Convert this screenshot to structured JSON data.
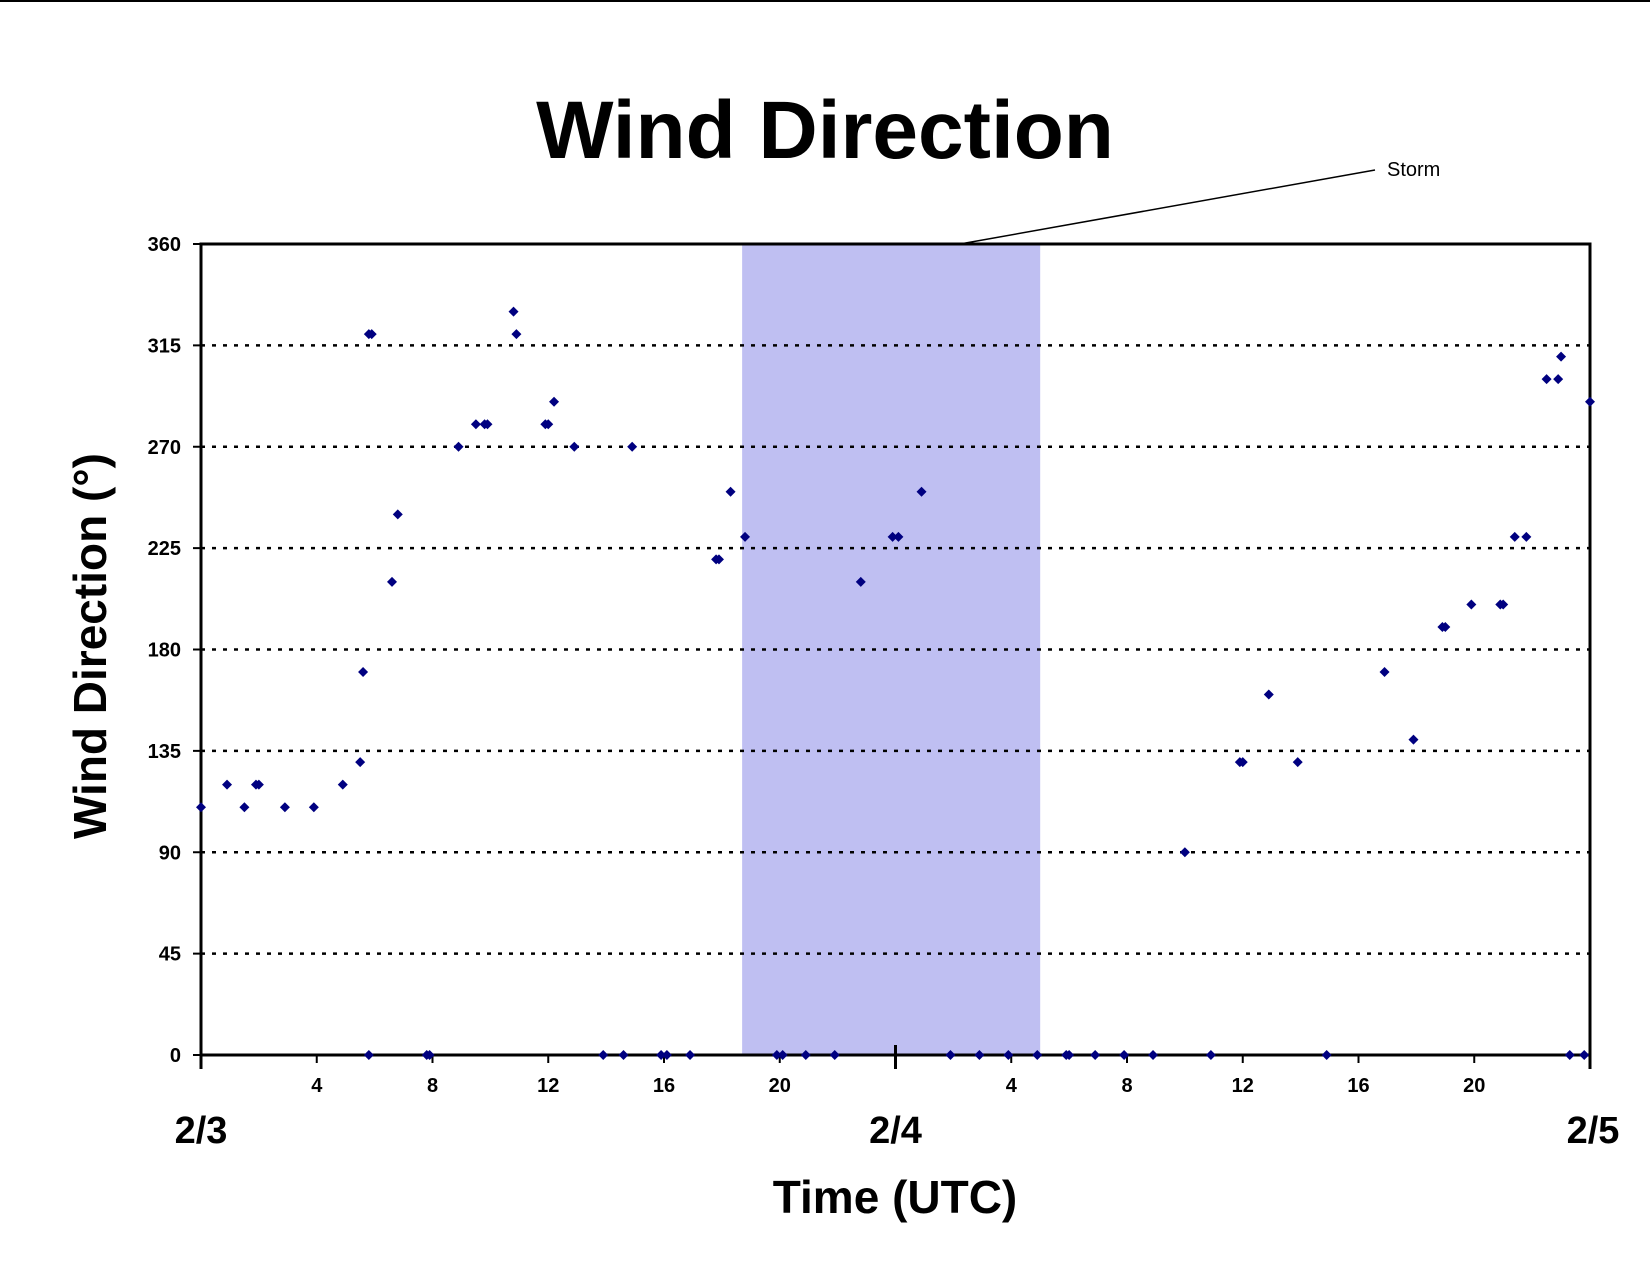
{
  "chart_data": {
    "type": "scatter",
    "title": "Wind Direction",
    "xlabel": "Time (UTC)",
    "ylabel": "Wind Direction (°)",
    "ylim": [
      0,
      360
    ],
    "yticks": [
      "0",
      "45",
      "90",
      "135",
      "180",
      "225",
      "270",
      "315",
      "360"
    ],
    "xlim_hours": [
      0,
      48
    ],
    "hour_ticks": [
      "4",
      "8",
      "12",
      "16",
      "20",
      "4",
      "8",
      "12",
      "16",
      "20"
    ],
    "date_labels": [
      "2/3",
      "2/4",
      "2/5"
    ],
    "grid": "horizontal dotted",
    "annotation": {
      "label": "Storm",
      "start_hour": 18.7,
      "end_hour": 29.0
    },
    "colors": {
      "marker": "#000080",
      "storm_shade": "#bfbff2",
      "grid": "#000000"
    },
    "series": [
      {
        "marker": "diamond",
        "points": [
          [
            0.0,
            110
          ],
          [
            0.9,
            120
          ],
          [
            1.5,
            110
          ],
          [
            1.9,
            120
          ],
          [
            2.0,
            120
          ],
          [
            2.9,
            110
          ],
          [
            3.9,
            110
          ],
          [
            4.9,
            120
          ],
          [
            5.5,
            130
          ],
          [
            5.6,
            170
          ],
          [
            5.8,
            320
          ],
          [
            5.9,
            320
          ],
          [
            6.6,
            210
          ],
          [
            6.8,
            240
          ],
          [
            8.9,
            270
          ],
          [
            9.5,
            280
          ],
          [
            9.8,
            280
          ],
          [
            9.9,
            280
          ],
          [
            10.8,
            330
          ],
          [
            10.9,
            320
          ],
          [
            11.9,
            280
          ],
          [
            12.0,
            280
          ],
          [
            12.2,
            290
          ],
          [
            12.9,
            270
          ],
          [
            14.9,
            270
          ],
          [
            17.8,
            220
          ],
          [
            17.9,
            220
          ],
          [
            18.3,
            250
          ],
          [
            18.8,
            230
          ],
          [
            22.8,
            210
          ],
          [
            23.9,
            230
          ],
          [
            24.1,
            230
          ],
          [
            24.9,
            250
          ],
          [
            34.0,
            90
          ],
          [
            35.9,
            130
          ],
          [
            36.0,
            130
          ],
          [
            36.9,
            160
          ],
          [
            37.9,
            130
          ],
          [
            40.9,
            170
          ],
          [
            41.9,
            140
          ],
          [
            42.9,
            190
          ],
          [
            43.0,
            190
          ],
          [
            43.9,
            200
          ],
          [
            44.9,
            200
          ],
          [
            45.0,
            200
          ],
          [
            45.4,
            230
          ],
          [
            45.8,
            230
          ],
          [
            46.5,
            300
          ],
          [
            46.9,
            300
          ],
          [
            47.0,
            310
          ],
          [
            48.0,
            290
          ],
          [
            5.8,
            0
          ],
          [
            7.8,
            0
          ],
          [
            7.9,
            0
          ],
          [
            13.9,
            0
          ],
          [
            14.6,
            0
          ],
          [
            15.9,
            0
          ],
          [
            16.1,
            0
          ],
          [
            16.9,
            0
          ],
          [
            19.9,
            0
          ],
          [
            20.1,
            0
          ],
          [
            20.9,
            0
          ],
          [
            21.9,
            0
          ],
          [
            25.9,
            0
          ],
          [
            26.9,
            0
          ],
          [
            27.9,
            0
          ],
          [
            28.9,
            0
          ],
          [
            29.9,
            0
          ],
          [
            30.0,
            0
          ],
          [
            30.9,
            0
          ],
          [
            31.9,
            0
          ],
          [
            32.9,
            0
          ],
          [
            34.9,
            0
          ],
          [
            38.9,
            0
          ],
          [
            47.3,
            0
          ],
          [
            47.8,
            0
          ]
        ]
      }
    ]
  }
}
